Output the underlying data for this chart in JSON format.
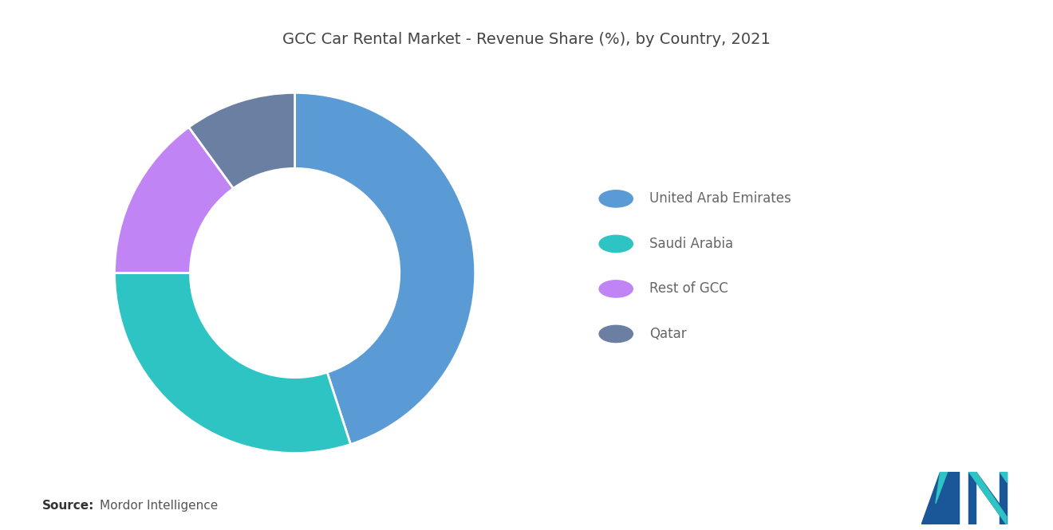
{
  "title": "GCC Car Rental Market - Revenue Share (%), by Country, 2021",
  "labels": [
    "United Arab Emirates",
    "Saudi Arabia",
    "Rest of GCC",
    "Qatar"
  ],
  "values": [
    45,
    30,
    15,
    10
  ],
  "colors": [
    "#5B9BD5",
    "#2EC4C4",
    "#C084F5",
    "#6B7FA3"
  ],
  "source_bold": "Source:",
  "source_text": "Mordor Intelligence",
  "background_color": "#FFFFFF",
  "title_fontsize": 14,
  "legend_fontsize": 12,
  "source_fontsize": 11,
  "startangle": 90,
  "donut_width": 0.42,
  "edge_color": "white",
  "edge_linewidth": 2.0,
  "logo_color_dark": "#1A5799",
  "logo_color_teal": "#2EC4C4"
}
